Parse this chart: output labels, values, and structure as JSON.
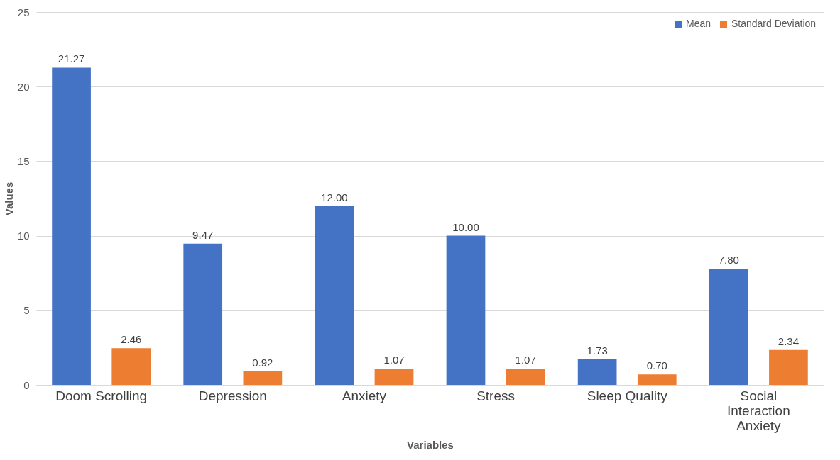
{
  "chart_data": {
    "type": "bar",
    "xlabel": "Variables",
    "ylabel": "Values",
    "categories": [
      "Doom Scrolling",
      "Depression",
      "Anxiety",
      "Stress",
      "Sleep Quality",
      "Social Interaction Anxiety"
    ],
    "series": [
      {
        "name": "Mean",
        "color": "#4472c4",
        "values": [
          21.27,
          9.47,
          12.0,
          10.0,
          1.73,
          7.8
        ],
        "value_labels": [
          "21.27",
          "9.47",
          "12.00",
          "10.00",
          "1.73",
          "7.80"
        ]
      },
      {
        "name": "Standard Deviation",
        "color": "#ed7d31",
        "values": [
          2.46,
          0.92,
          1.07,
          1.07,
          0.7,
          2.34
        ],
        "value_labels": [
          "2.46",
          "0.92",
          "1.07",
          "1.07",
          "0.70",
          "2.34"
        ]
      }
    ],
    "ylim": [
      0,
      25
    ],
    "yticks": [
      0,
      5,
      10,
      15,
      20,
      25
    ],
    "grid": "y",
    "legend": "top right"
  }
}
